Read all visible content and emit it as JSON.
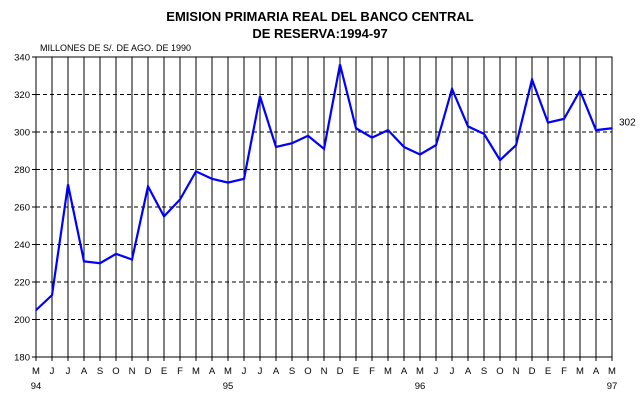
{
  "chart_data": {
    "type": "line",
    "title_line1": "EMISION PRIMARIA REAL DEL BANCO CENTRAL",
    "title_line2": "DE RESERVA:1994-97",
    "unit_label": "MILLONES DE S/. DE AGO. DE 1990",
    "ylim": [
      180,
      340
    ],
    "yticks": [
      "180",
      "200",
      "220",
      "240",
      "260",
      "280",
      "300",
      "320",
      "340"
    ],
    "month_labels": [
      "M",
      "J",
      "J",
      "A",
      "S",
      "O",
      "N",
      "D",
      "E",
      "F",
      "M",
      "A",
      "M",
      "J",
      "J",
      "A",
      "S",
      "O",
      "N",
      "D",
      "E",
      "F",
      "M",
      "A",
      "M",
      "J",
      "J",
      "A",
      "S",
      "O",
      "N",
      "D",
      "E",
      "F",
      "M",
      "A",
      "M"
    ],
    "year_labels": [
      {
        "index": 0,
        "label": "94"
      },
      {
        "index": 12,
        "label": "95"
      },
      {
        "index": 24,
        "label": "96"
      },
      {
        "index": 36,
        "label": "97"
      }
    ],
    "series": [
      {
        "color": "#0000ff",
        "values": [
          205,
          213,
          272,
          231,
          230,
          235,
          232,
          271,
          255,
          264,
          279,
          275,
          273,
          275,
          319,
          292,
          294,
          298,
          291,
          336,
          302,
          297,
          301,
          292,
          288,
          293,
          323,
          303,
          299,
          285,
          293,
          328,
          305,
          307,
          322,
          301,
          302
        ]
      }
    ],
    "end_label": "302",
    "grid": true
  }
}
